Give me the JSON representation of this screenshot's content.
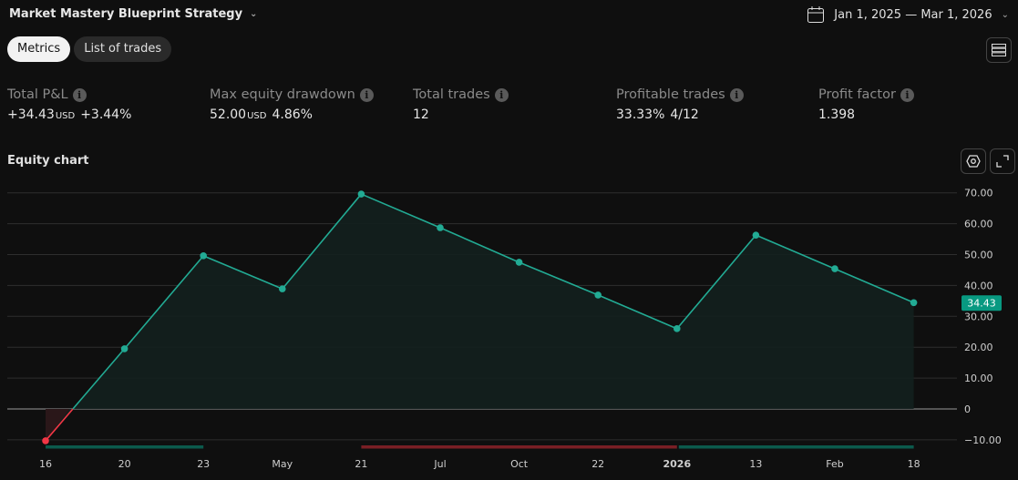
{
  "header": {
    "strategy_name": "Market Mastery Blueprint Strategy",
    "date_range": "Jan 1, 2025 — Mar 1, 2026",
    "icons": [
      "chevron-down-icon",
      "calendar-icon",
      "menu-icon"
    ]
  },
  "tabs": [
    {
      "label": "Metrics",
      "active": true
    },
    {
      "label": "List of trades",
      "active": false
    }
  ],
  "metrics": [
    {
      "label": "Total P&L",
      "value": "+34.43",
      "unit": "USD",
      "extra": "+3.44%",
      "positive": true
    },
    {
      "label": "Max equity drawdown",
      "value": "52.00",
      "unit": "USD",
      "extra": "4.86%",
      "positive": false
    },
    {
      "label": "Total trades",
      "value": "12",
      "unit": "",
      "extra": "",
      "positive": false
    },
    {
      "label": "Profitable trades",
      "value": "33.33%",
      "unit": "",
      "extra": "4/12",
      "positive": false
    },
    {
      "label": "Profit factor",
      "value": "1.398",
      "unit": "",
      "extra": "",
      "positive": false
    }
  ],
  "chart_section": {
    "title": "Equity chart",
    "icons": [
      "settings-icon",
      "expand-icon"
    ]
  },
  "colors": {
    "positive": "#22ab94",
    "negative": "#f23645",
    "band_green": "#0b5a4c",
    "band_red": "#7a1f25"
  },
  "chart_data": {
    "type": "line",
    "x_tick_labels": [
      "16",
      "20",
      "23",
      "May",
      "21",
      "Jul",
      "Oct",
      "22",
      "2026",
      "13",
      "Feb",
      "18"
    ],
    "values": [
      -10.3,
      19.5,
      49.6,
      38.9,
      69.6,
      58.7,
      47.5,
      36.9,
      26.0,
      56.3,
      45.4,
      34.43
    ],
    "last_value_label": "34.43",
    "y_ticks": [
      -10,
      0,
      10,
      20,
      30,
      40,
      50,
      60,
      70
    ],
    "y_tick_labels": [
      "−10.00",
      "0",
      "10.00",
      "20.00",
      "30.00",
      "40.00",
      "50.00",
      "60.00",
      "70.00"
    ],
    "ylim": [
      -10.5,
      70
    ],
    "grid": true,
    "trade_bands": [
      {
        "from_index": 0,
        "to_index": 2,
        "result": "win"
      },
      {
        "from_index": 4,
        "to_index": 8,
        "result": "loss"
      },
      {
        "from_index": 8,
        "to_index": 11,
        "result": "win"
      }
    ]
  }
}
